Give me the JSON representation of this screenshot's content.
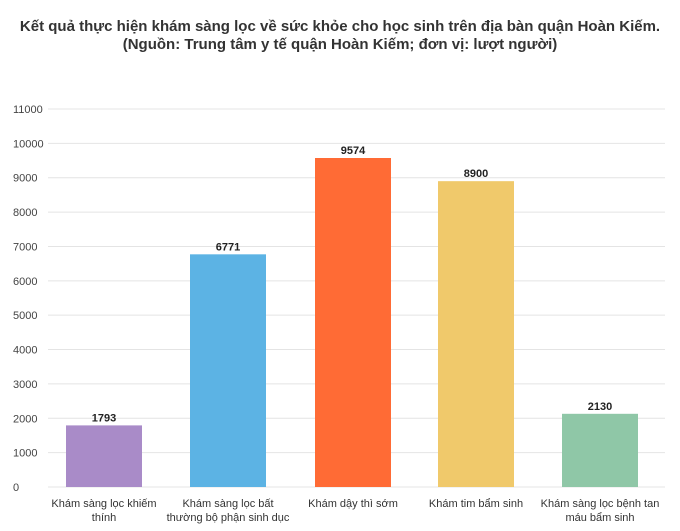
{
  "chart_data": {
    "type": "bar",
    "title": "Kết quả thực hiện khám sàng lọc về sức khỏe cho học sinh trên địa bàn quận Hoàn Kiếm.",
    "subtitle": "(Nguồn: Trung tâm y tế quận Hoàn Kiếm; đơn vị: lượt người)",
    "categories": [
      [
        "Khám sàng lọc khiếm",
        "thính"
      ],
      [
        "Khám sàng lọc bất",
        "thường bộ phận sinh dục"
      ],
      [
        "Khám dậy thì sớm"
      ],
      [
        "Khám tim bẩm sinh"
      ],
      [
        "Khám sàng lọc bệnh tan",
        "máu bẩm sinh"
      ]
    ],
    "values": [
      1793,
      6771,
      9574,
      8900,
      2130
    ],
    "colors": [
      "#a98bc8",
      "#5cb3e4",
      "#ff6b35",
      "#f0c96b",
      "#8fc7a7"
    ],
    "yticks": [
      0,
      1000,
      2000,
      3000,
      4000,
      5000,
      6000,
      7000,
      8000,
      9000,
      10000,
      11000
    ],
    "ylim": [
      0,
      11000
    ],
    "grid": true
  }
}
